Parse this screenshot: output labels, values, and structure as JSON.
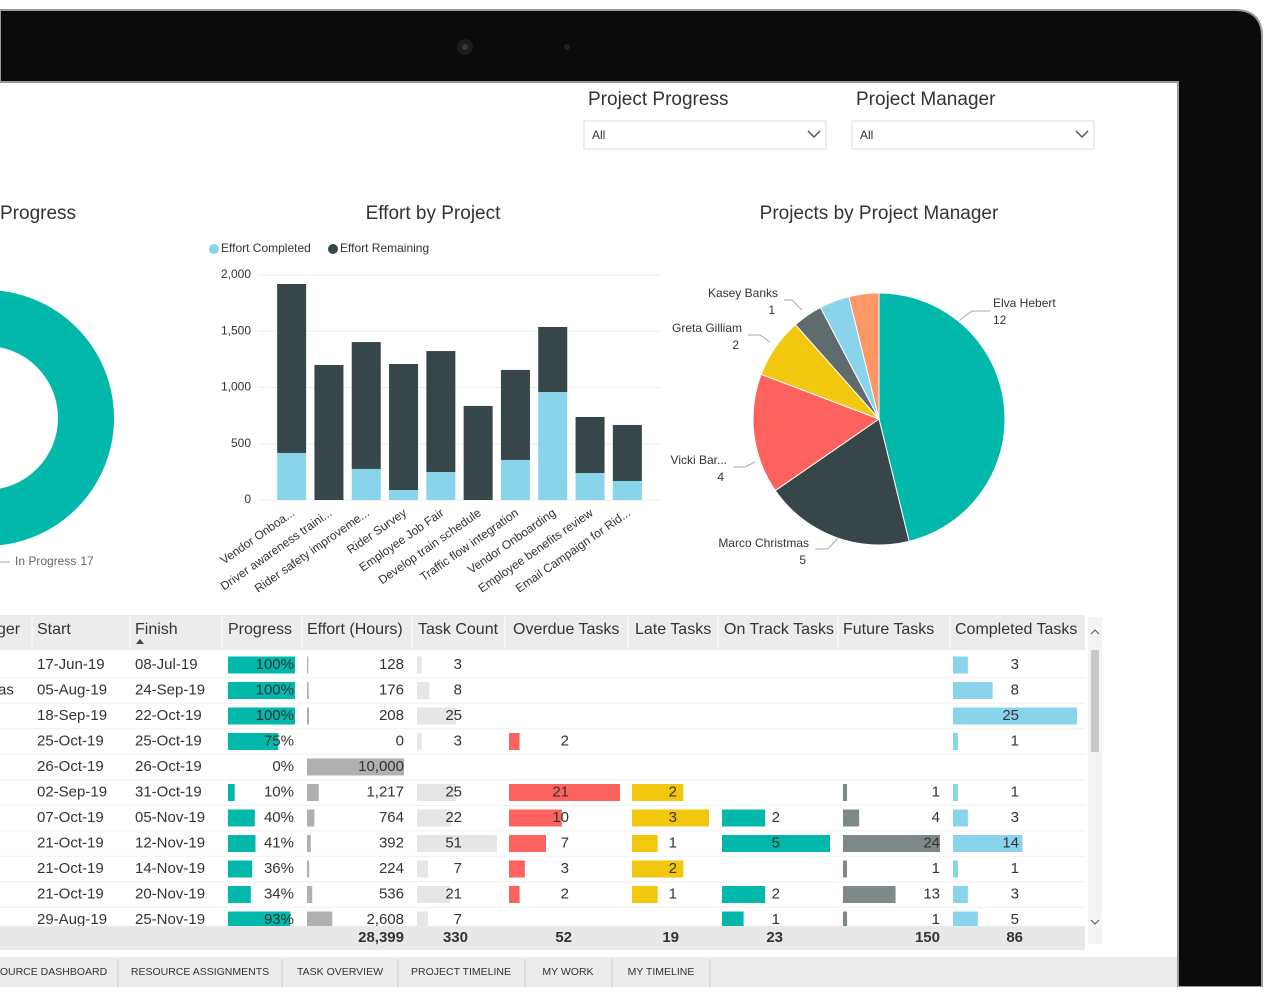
{
  "filters": [
    {
      "label": "Project Progress",
      "value": "All"
    },
    {
      "label": "Project Manager",
      "value": "All"
    }
  ],
  "chart_data": [
    {
      "type": "donut",
      "title": "Progress",
      "categories": [
        "In Progress"
      ],
      "values": [
        17
      ],
      "colors": [
        "#01b8aa"
      ]
    },
    {
      "type": "bar",
      "stacked": true,
      "title": "Effort by Project",
      "categories": [
        "Vendor Onboa...",
        "Driver awareness traini...",
        "Rider safety improveme...",
        "Rider Survey",
        "Employee Job Fair",
        "Develop train schedule",
        "Traffic flow integration",
        "Vendor Onboarding",
        "Employee benefits review",
        "Email Campaign for Rid..."
      ],
      "series": [
        {
          "name": "Effort Completed",
          "color": "#8ad4eb",
          "values": [
            418,
            0,
            276,
            89,
            249,
            0,
            356,
            960,
            240,
            169
          ]
        },
        {
          "name": "Effort Remaining",
          "color": "#374649",
          "values": [
            1502,
            1200,
            1128,
            1120,
            1075,
            836,
            800,
            578,
            498,
            498
          ]
        }
      ],
      "ylim": [
        0,
        2000
      ],
      "yticks": [
        0,
        500,
        {
          "value": 1000,
          "label": "1,000"
        },
        {
          "value": 1500,
          "label": "1,500"
        },
        {
          "value": 2000,
          "label": "2,000"
        }
      ],
      "grid": true,
      "legend": "top-left"
    },
    {
      "type": "pie",
      "title": "Projects by Project Manager",
      "categories": [
        "Elva Hebert",
        "Marco Christmas",
        "Vicki Bar...",
        "Greta Gilliam",
        "Kasey Banks",
        null,
        null
      ],
      "values": [
        12,
        5,
        4,
        2,
        1,
        1,
        1
      ],
      "colors": [
        "#01b8aa",
        "#374649",
        "#fd625e",
        "#f2c80f",
        "#5f6b6d",
        "#8ad4eb",
        "#fe9666"
      ]
    }
  ],
  "table": {
    "columns": [
      "ger",
      "Start",
      "Finish",
      "Progress",
      "Effort (Hours)",
      "Task Count",
      "Overdue Tasks",
      "Late Tasks",
      "On Track Tasks",
      "Future Tasks",
      "Completed Tasks"
    ],
    "bar_colors": [
      null,
      null,
      null,
      "#01b8aa",
      "#b0b0b0",
      "#e6e6e6",
      "#fd625e",
      "#f2c80f",
      "#01b8aa",
      "#7f898a",
      "#8ad4eb"
    ],
    "rows": [
      [
        null,
        "17-Jun-19",
        "08-Jul-19",
        {
          "value": 100,
          "label": "100%"
        },
        128,
        3,
        null,
        null,
        null,
        null,
        3
      ],
      [
        "as",
        "05-Aug-19",
        "24-Sep-19",
        {
          "value": 100,
          "label": "100%"
        },
        176,
        8,
        null,
        null,
        null,
        null,
        8
      ],
      [
        null,
        "18-Sep-19",
        "22-Oct-19",
        {
          "value": 100,
          "label": "100%"
        },
        208,
        25,
        null,
        null,
        null,
        null,
        25
      ],
      [
        null,
        "25-Oct-19",
        "25-Oct-19",
        {
          "value": 75,
          "label": "75%"
        },
        0,
        3,
        2,
        null,
        null,
        null,
        1
      ],
      [
        null,
        "26-Oct-19",
        "26-Oct-19",
        {
          "value": 0,
          "label": "0%"
        },
        {
          "value": 10000,
          "label": "10,000"
        },
        null,
        null,
        null,
        null,
        null,
        null
      ],
      [
        null,
        "02-Sep-19",
        "31-Oct-19",
        {
          "value": 10,
          "label": "10%"
        },
        {
          "value": 1217,
          "label": "1,217"
        },
        25,
        21,
        2,
        null,
        1,
        1
      ],
      [
        null,
        "07-Oct-19",
        "05-Nov-19",
        {
          "value": 40,
          "label": "40%"
        },
        764,
        22,
        10,
        3,
        2,
        4,
        3
      ],
      [
        null,
        "21-Oct-19",
        "12-Nov-19",
        {
          "value": 41,
          "label": "41%"
        },
        392,
        51,
        7,
        1,
        5,
        24,
        14
      ],
      [
        null,
        "21-Oct-19",
        "14-Nov-19",
        {
          "value": 36,
          "label": "36%"
        },
        224,
        7,
        3,
        2,
        null,
        1,
        1
      ],
      [
        null,
        "21-Oct-19",
        "20-Nov-19",
        {
          "value": 34,
          "label": "34%"
        },
        536,
        21,
        2,
        1,
        2,
        13,
        3
      ],
      [
        null,
        "29-Aug-19",
        "25-Nov-19",
        {
          "value": 93,
          "label": "93%"
        },
        {
          "value": 2608,
          "label": "2,608"
        },
        7,
        null,
        null,
        1,
        1,
        5
      ]
    ],
    "totals": [
      null,
      null,
      null,
      null,
      {
        "value": 28399,
        "label": "28,399"
      },
      330,
      52,
      19,
      23,
      150,
      86
    ]
  },
  "tabs": [
    "SOURCE DASHBOARD",
    "RESOURCE ASSIGNMENTS",
    "TASK OVERVIEW",
    "PROJECT TIMELINE",
    "MY WORK",
    "MY TIMELINE"
  ]
}
